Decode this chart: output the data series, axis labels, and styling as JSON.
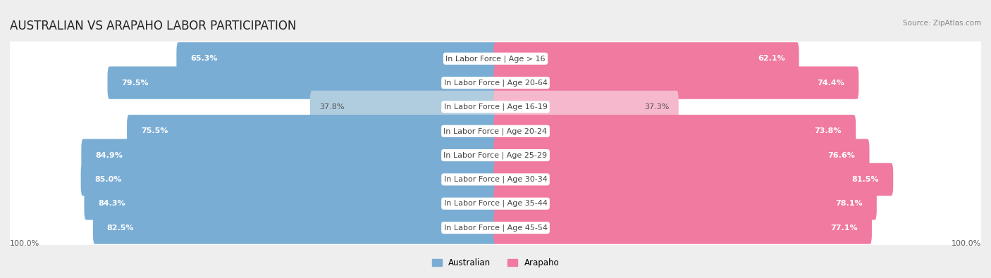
{
  "title": "AUSTRALIAN VS ARAPAHO LABOR PARTICIPATION",
  "source": "Source: ZipAtlas.com",
  "categories": [
    "In Labor Force | Age > 16",
    "In Labor Force | Age 20-64",
    "In Labor Force | Age 16-19",
    "In Labor Force | Age 20-24",
    "In Labor Force | Age 25-29",
    "In Labor Force | Age 30-34",
    "In Labor Force | Age 35-44",
    "In Labor Force | Age 45-54"
  ],
  "australian_values": [
    65.3,
    79.5,
    37.8,
    75.5,
    84.9,
    85.0,
    84.3,
    82.5
  ],
  "arapaho_values": [
    62.1,
    74.4,
    37.3,
    73.8,
    76.6,
    81.5,
    78.1,
    77.1
  ],
  "australian_color": "#7aadd4",
  "australian_color_light": "#b0ccdf",
  "arapaho_color": "#f07aa0",
  "arapaho_color_light": "#f5b8cc",
  "background_color": "#eeeeee",
  "max_value": 100.0,
  "bar_height": 0.55,
  "legend_australian": "Australian",
  "legend_arapaho": "Arapaho",
  "title_fontsize": 12,
  "label_fontsize": 8,
  "value_fontsize": 8
}
